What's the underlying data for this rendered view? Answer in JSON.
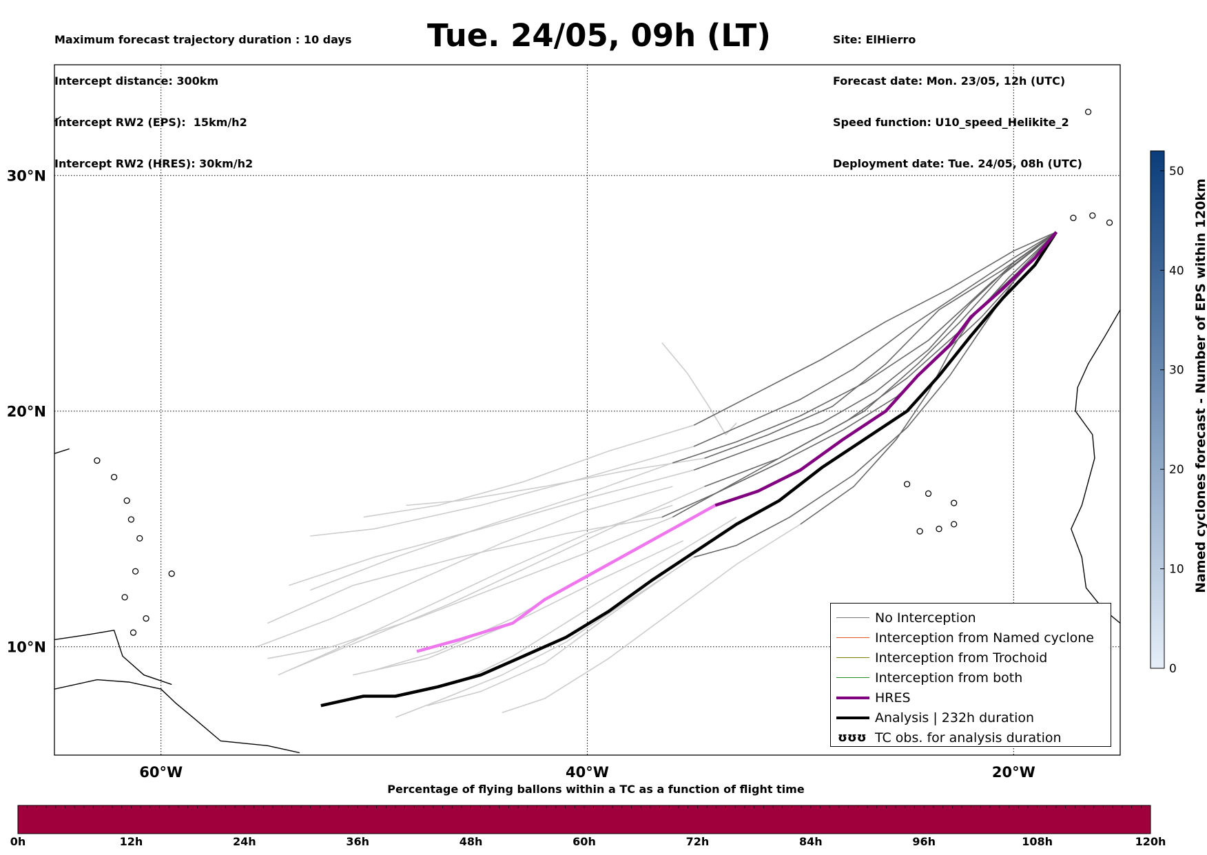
{
  "header": {
    "left_lines": [
      "Maximum forecast trajectory duration : 10 days",
      "Intercept distance: 300km",
      "Intercept RW2 (EPS):  15km/h2",
      "Intercept RW2 (HRES): 30km/h2"
    ],
    "title": "Tue. 24/05, 09h (LT)",
    "right_lines": [
      "Site: ElHierro",
      "Forecast date: Mon. 23/05, 12h (UTC)",
      "Speed function: U10_speed_Helikite_2",
      "Deployment date: Tue. 24/05, 08h (UTC)"
    ]
  },
  "map": {
    "lon_range": [
      -65,
      -15
    ],
    "lat_range": [
      5.4,
      34.7
    ],
    "lat_ticks": [
      {
        "value": 30,
        "label": "30°N"
      },
      {
        "value": 20,
        "label": "20°N"
      },
      {
        "value": 10,
        "label": "10°N"
      }
    ],
    "lon_ticks": [
      {
        "value": -60,
        "label": "60°W"
      },
      {
        "value": -40,
        "label": "40°W"
      },
      {
        "value": -20,
        "label": "20°W"
      }
    ],
    "grid": "dotted",
    "launch_site": {
      "name": "ElHierro",
      "lon": -18.0,
      "lat": 27.6
    },
    "hres_track": [
      [
        -18.0,
        27.6
      ],
      [
        -19.0,
        26.5
      ],
      [
        -20.5,
        25.2
      ],
      [
        -22.0,
        24.0
      ],
      [
        -23.0,
        22.8
      ],
      [
        -24.5,
        21.5
      ],
      [
        -26.0,
        20.0
      ],
      [
        -28.0,
        18.8
      ],
      [
        -30.0,
        17.5
      ],
      [
        -32.0,
        16.6
      ],
      [
        -34.0,
        16.0
      ],
      [
        -36.0,
        15.0
      ],
      [
        -38.0,
        14.0
      ],
      [
        -40.0,
        13.0
      ],
      [
        -42.0,
        12.0
      ],
      [
        -43.5,
        11.0
      ],
      [
        -46.0,
        10.3
      ],
      [
        -48.0,
        9.8
      ]
    ],
    "analysis_track": [
      [
        -18.0,
        27.6
      ],
      [
        -19.0,
        26.2
      ],
      [
        -20.5,
        24.8
      ],
      [
        -22.0,
        23.2
      ],
      [
        -23.5,
        21.5
      ],
      [
        -25.0,
        20.0
      ],
      [
        -27.0,
        18.8
      ],
      [
        -29.0,
        17.6
      ],
      [
        -31.0,
        16.2
      ],
      [
        -33.0,
        15.2
      ],
      [
        -35.0,
        14.0
      ],
      [
        -37.0,
        12.8
      ],
      [
        -39.0,
        11.5
      ],
      [
        -41.0,
        10.4
      ],
      [
        -43.0,
        9.6
      ],
      [
        -45.0,
        8.8
      ],
      [
        -47.0,
        8.3
      ],
      [
        -49.0,
        7.9
      ],
      [
        -50.5,
        7.9
      ],
      [
        -52.5,
        7.5
      ]
    ],
    "dark_tracks": [
      [
        [
          -18.0,
          27.6
        ],
        [
          -20.0,
          26.5
        ],
        [
          -22.5,
          25.0
        ],
        [
          -25.0,
          23.5
        ],
        [
          -27.5,
          21.8
        ],
        [
          -30.0,
          20.5
        ],
        [
          -32.5,
          19.5
        ],
        [
          -35.0,
          18.5
        ]
      ],
      [
        [
          -18.0,
          27.6
        ],
        [
          -20.0,
          26.3
        ],
        [
          -22.0,
          24.6
        ],
        [
          -24.0,
          22.6
        ],
        [
          -26.5,
          20.8
        ],
        [
          -29.0,
          19.5
        ],
        [
          -32.0,
          18.5
        ],
        [
          -35.0,
          17.5
        ]
      ],
      [
        [
          -18.0,
          27.6
        ],
        [
          -20.5,
          25.8
        ],
        [
          -22.5,
          23.8
        ],
        [
          -24.5,
          22.0
        ],
        [
          -27.0,
          20.0
        ],
        [
          -30.0,
          18.5
        ],
        [
          -33.0,
          17.0
        ],
        [
          -36.0,
          15.5
        ]
      ],
      [
        [
          -18.0,
          27.6
        ],
        [
          -20.0,
          25.5
        ],
        [
          -21.5,
          23.5
        ],
        [
          -23.0,
          21.5
        ],
        [
          -25.0,
          19.3
        ],
        [
          -27.5,
          17.3
        ],
        [
          -30.5,
          15.5
        ],
        [
          -33.0,
          14.3
        ],
        [
          -35.0,
          13.8
        ]
      ],
      [
        [
          -18.0,
          27.6
        ],
        [
          -19.5,
          26.0
        ],
        [
          -21.5,
          24.0
        ],
        [
          -23.5,
          22.3
        ],
        [
          -25.5,
          20.6
        ],
        [
          -28.0,
          19.2
        ],
        [
          -31.0,
          17.8
        ],
        [
          -34.0,
          16.5
        ],
        [
          -36.5,
          15.5
        ]
      ],
      [
        [
          -18.0,
          27.6
        ],
        [
          -20.0,
          26.8
        ],
        [
          -23.0,
          25.2
        ],
        [
          -26.0,
          23.8
        ],
        [
          -29.0,
          22.2
        ],
        [
          -32.0,
          20.8
        ],
        [
          -35.0,
          19.4
        ]
      ],
      [
        [
          -18.0,
          27.6
        ],
        [
          -19.8,
          25.9
        ],
        [
          -21.8,
          24.2
        ],
        [
          -23.0,
          22.5
        ],
        [
          -24.0,
          20.8
        ],
        [
          -25.5,
          18.8
        ],
        [
          -27.5,
          16.8
        ],
        [
          -30.0,
          15.2
        ]
      ],
      [
        [
          -18.0,
          27.6
        ],
        [
          -21.0,
          25.5
        ],
        [
          -24.0,
          23.0
        ],
        [
          -27.0,
          21.2
        ],
        [
          -30.0,
          19.8
        ],
        [
          -33.0,
          18.7
        ],
        [
          -36.0,
          17.8
        ]
      ],
      [
        [
          -18.0,
          27.6
        ],
        [
          -20.2,
          25.7
        ],
        [
          -22.4,
          23.5
        ],
        [
          -25.0,
          21.4
        ],
        [
          -27.8,
          19.6
        ],
        [
          -31.0,
          18.0
        ],
        [
          -34.5,
          16.8
        ]
      ],
      [
        [
          -18.0,
          27.6
        ],
        [
          -20.5,
          26.0
        ],
        [
          -23.5,
          24.3
        ],
        [
          -26.0,
          22.0
        ],
        [
          -28.5,
          20.2
        ],
        [
          -31.5,
          19.0
        ],
        [
          -34.5,
          18.0
        ]
      ]
    ],
    "light_tracks": [
      [
        [
          -35.0,
          18.5
        ],
        [
          -40.0,
          17.2
        ],
        [
          -45.0,
          16.0
        ],
        [
          -50.0,
          15.0
        ],
        [
          -53.0,
          14.7
        ]
      ],
      [
        [
          -35.0,
          17.5
        ],
        [
          -40.0,
          16.3
        ],
        [
          -45.0,
          15.0
        ],
        [
          -50.0,
          13.8
        ],
        [
          -54.0,
          12.6
        ]
      ],
      [
        [
          -36.0,
          15.5
        ],
        [
          -40.0,
          14.0
        ],
        [
          -44.0,
          12.6
        ],
        [
          -48.0,
          11.2
        ],
        [
          -52.0,
          10.0
        ],
        [
          -55.0,
          9.5
        ]
      ],
      [
        [
          -35.0,
          13.8
        ],
        [
          -38.0,
          12.0
        ],
        [
          -41.0,
          10.2
        ],
        [
          -44.0,
          8.8
        ],
        [
          -47.0,
          7.7
        ],
        [
          -49.0,
          7.0
        ]
      ],
      [
        [
          -36.5,
          15.5
        ],
        [
          -41.0,
          14.8
        ],
        [
          -46.0,
          13.8
        ],
        [
          -51.0,
          12.6
        ],
        [
          -55.0,
          11.0
        ]
      ],
      [
        [
          -35.0,
          19.4
        ],
        [
          -39.0,
          18.3
        ],
        [
          -43.0,
          17.0
        ],
        [
          -47.0,
          16.0
        ],
        [
          -50.5,
          15.5
        ]
      ],
      [
        [
          -30.0,
          15.2
        ],
        [
          -33.0,
          13.5
        ],
        [
          -36.0,
          11.5
        ],
        [
          -39.0,
          9.5
        ],
        [
          -42.0,
          7.8
        ],
        [
          -44.0,
          7.2
        ]
      ],
      [
        [
          -36.0,
          17.8
        ],
        [
          -40.0,
          16.5
        ],
        [
          -44.5,
          15.2
        ],
        [
          -49.0,
          13.8
        ],
        [
          -53.0,
          12.4
        ]
      ],
      [
        [
          -34.5,
          16.8
        ],
        [
          -38.5,
          15.2
        ],
        [
          -42.5,
          13.5
        ],
        [
          -46.5,
          11.8
        ],
        [
          -50.5,
          10.3
        ],
        [
          -54.0,
          9.0
        ]
      ],
      [
        [
          -34.5,
          18.0
        ],
        [
          -38.0,
          17.5
        ],
        [
          -42.0,
          16.8
        ],
        [
          -46.0,
          16.2
        ],
        [
          -48.5,
          16.0
        ]
      ],
      [
        [
          -36.0,
          16.0
        ],
        [
          -40.0,
          14.8
        ],
        [
          -44.0,
          13.2
        ],
        [
          -48.0,
          11.5
        ],
        [
          -52.0,
          9.8
        ],
        [
          -54.5,
          8.8
        ]
      ],
      [
        [
          -36.5,
          14.8
        ],
        [
          -40.0,
          13.0
        ],
        [
          -43.5,
          11.2
        ],
        [
          -47.0,
          9.8
        ],
        [
          -50.0,
          9.0
        ]
      ],
      [
        [
          -33.0,
          15.5
        ],
        [
          -37.0,
          13.3
        ],
        [
          -40.5,
          11.3
        ],
        [
          -43.5,
          9.6
        ],
        [
          -46.0,
          8.5
        ]
      ],
      [
        [
          -33.0,
          19.5
        ],
        [
          -33.5,
          19.0
        ],
        [
          -34.3,
          20.2
        ],
        [
          -35.3,
          21.6
        ],
        [
          -36.5,
          22.9
        ]
      ],
      [
        [
          -36.0,
          16.8
        ],
        [
          -40.0,
          15.8
        ],
        [
          -44.0,
          14.4
        ],
        [
          -48.0,
          12.8
        ],
        [
          -52.0,
          11.2
        ],
        [
          -55.5,
          10.0
        ]
      ],
      [
        [
          -35.5,
          14.5
        ],
        [
          -39.5,
          12.8
        ],
        [
          -43.5,
          11.0
        ],
        [
          -47.5,
          9.5
        ],
        [
          -51.0,
          8.8
        ]
      ],
      [
        [
          -36.0,
          13.2
        ],
        [
          -39.0,
          11.3
        ],
        [
          -42.0,
          9.3
        ],
        [
          -45.0,
          8.1
        ],
        [
          -47.5,
          7.5
        ]
      ]
    ],
    "coastlines": [
      [
        [
          -65.0,
          8.2
        ],
        [
          -63.0,
          8.6
        ],
        [
          -61.5,
          8.5
        ],
        [
          -60.0,
          8.2
        ],
        [
          -59.3,
          7.6
        ],
        [
          -58.5,
          7.0
        ],
        [
          -57.2,
          6.0
        ],
        [
          -55.0,
          5.8
        ],
        [
          -53.5,
          5.5
        ]
      ],
      [
        [
          -65.0,
          10.3
        ],
        [
          -63.5,
          10.5
        ],
        [
          -62.2,
          10.7
        ],
        [
          -61.8,
          9.6
        ],
        [
          -60.8,
          8.8
        ],
        [
          -59.5,
          8.4
        ]
      ],
      [
        [
          -65.0,
          18.2
        ],
        [
          -64.3,
          18.4
        ]
      ],
      [
        [
          -65.0,
          32.3
        ],
        [
          -64.7,
          32.5
        ]
      ]
    ],
    "islands": [
      {
        "lon": -59.5,
        "lat": 13.1
      },
      {
        "lon": -61.0,
        "lat": 14.6
      },
      {
        "lon": -61.4,
        "lat": 15.4
      },
      {
        "lon": -61.6,
        "lat": 16.2
      },
      {
        "lon": -61.2,
        "lat": 13.2
      },
      {
        "lon": -61.7,
        "lat": 12.1
      },
      {
        "lon": -60.7,
        "lat": 11.2
      },
      {
        "lon": -61.3,
        "lat": 10.6
      },
      {
        "lon": -62.2,
        "lat": 17.2
      },
      {
        "lon": -63.0,
        "lat": 17.9
      },
      {
        "lon": -16.3,
        "lat": 28.3
      },
      {
        "lon": -15.5,
        "lat": 28.0
      },
      {
        "lon": -17.2,
        "lat": 28.2
      },
      {
        "lon": -16.5,
        "lat": 32.7
      },
      {
        "lon": -24.0,
        "lat": 16.5
      },
      {
        "lon": -23.5,
        "lat": 15.0
      },
      {
        "lon": -22.8,
        "lat": 16.1
      },
      {
        "lon": -24.4,
        "lat": 14.9
      },
      {
        "lon": -25.0,
        "lat": 16.9
      },
      {
        "lon": -22.8,
        "lat": 15.2
      }
    ],
    "african_coast": [
      [
        -15.0,
        24.3
      ],
      [
        -15.7,
        23.2
      ],
      [
        -16.5,
        22.0
      ],
      [
        -17.0,
        21.0
      ],
      [
        -17.1,
        20.0
      ],
      [
        -16.3,
        19.0
      ],
      [
        -16.2,
        18.0
      ],
      [
        -16.5,
        17.0
      ],
      [
        -16.8,
        16.0
      ],
      [
        -17.3,
        15.0
      ],
      [
        -16.8,
        13.8
      ],
      [
        -16.6,
        12.5
      ],
      [
        -15.8,
        11.6
      ],
      [
        -15.0,
        11.0
      ]
    ]
  },
  "legend": {
    "items": [
      {
        "label": "No Interception",
        "color": "#777777",
        "width": 1
      },
      {
        "label": "Interception from Named cyclone",
        "color": "#e8551f",
        "width": 1
      },
      {
        "label": "Interception from Trochoid",
        "color": "#808000",
        "width": 1
      },
      {
        "label": "Interception from both",
        "color": "#228b22",
        "width": 1
      },
      {
        "label": "HRES",
        "color": "#800080",
        "width": 4
      },
      {
        "label": "Analysis | 232h duration",
        "color": "#000000",
        "width": 4
      },
      {
        "label": "TC obs. for analysis duration",
        "color": "#000000",
        "width": 0,
        "symbol": "ʊʊʊ"
      }
    ]
  },
  "colorbar": {
    "label": "Named cyclones forecast - Number of EPS within 120km",
    "ticks": [
      "0",
      "10",
      "20",
      "30",
      "40",
      "50"
    ],
    "range": [
      0,
      52
    ],
    "color_low": "#e6eff9",
    "color_high": "#0b3d7a"
  },
  "time_bar": {
    "title": "Percentage of flying ballons within a TC as a function of flight time",
    "ticks": [
      "0h",
      "12h",
      "24h",
      "36h",
      "48h",
      "60h",
      "72h",
      "84h",
      "96h",
      "108h",
      "120h"
    ],
    "color": "#a0003c"
  },
  "colors": {
    "hres_near": "#800080",
    "hres_far": "#ee77ee",
    "no_interception_dark": "#666666",
    "no_interception_light": "#cccccc"
  }
}
